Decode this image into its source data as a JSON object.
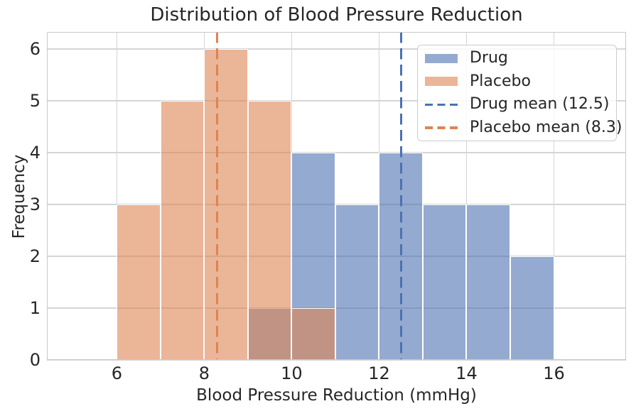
{
  "chart_data": {
    "type": "bar",
    "subtype": "histogram",
    "title": "Distribution of Blood Pressure Reduction",
    "xlabel": "Blood Pressure Reduction (mmHg)",
    "ylabel": "Frequency",
    "xlim": [
      4.4,
      17.65
    ],
    "ylim": [
      0,
      6.33
    ],
    "xticks": [
      6,
      8,
      10,
      12,
      14,
      16
    ],
    "yticks": [
      0,
      1,
      2,
      3,
      4,
      5,
      6
    ],
    "grid": true,
    "bin_width": 1,
    "series": [
      {
        "name": "Drug",
        "color": "#4C72B0",
        "fill_alpha": 0.6,
        "bin_edges": [
          9,
          10,
          11,
          12,
          13,
          14,
          15,
          16
        ],
        "counts": [
          1,
          4,
          3,
          4,
          3,
          3,
          2
        ],
        "mean": 12.5
      },
      {
        "name": "Placebo",
        "color": "#DD8452",
        "fill_alpha": 0.6,
        "bin_edges": [
          6,
          7,
          8,
          9,
          10,
          11
        ],
        "counts": [
          3,
          5,
          6,
          5,
          1
        ],
        "mean": 8.3
      }
    ],
    "mean_lines": [
      {
        "name": "drug-mean",
        "value": 12.5,
        "color": "#4C72B0",
        "style": "dashed"
      },
      {
        "name": "placebo-mean",
        "value": 8.3,
        "color": "#DD8452",
        "style": "dashed"
      }
    ],
    "legend": {
      "position": "upper-right",
      "entries": [
        {
          "label": "Drug",
          "swatch": "patch",
          "color": "#4C72B0",
          "alpha": 0.6
        },
        {
          "label": "Placebo",
          "swatch": "patch",
          "color": "#DD8452",
          "alpha": 0.6
        },
        {
          "label": "Drug mean (12.5)",
          "swatch": "dashed-line",
          "color": "#4C72B0"
        },
        {
          "label": "Placebo mean (8.3)",
          "swatch": "dashed-line",
          "color": "#DD8452"
        }
      ]
    },
    "colors": {
      "background": "#ffffff",
      "grid": "#d5d5d7",
      "spine": "#c9c9c9",
      "text": "#262626",
      "bar_edge": "#ffffff"
    }
  }
}
